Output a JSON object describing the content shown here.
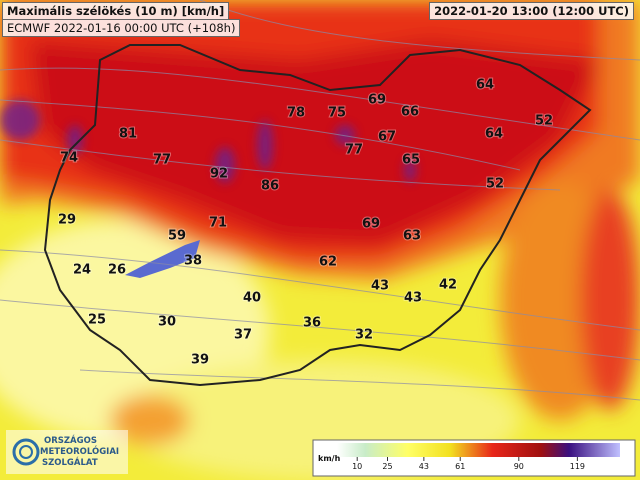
{
  "header": {
    "title": "Maximális szélökés (10 m) [km/h]",
    "subtitle": "ECMWF 2022-01-16 00:00 UTC (+108h)",
    "valid_time": "2022-01-20 13:00 (12:00 UTC)"
  },
  "map": {
    "labels": [
      74,
      81,
      77,
      92,
      86,
      78,
      75,
      69,
      66,
      64,
      67,
      77,
      65,
      64,
      52,
      52,
      29,
      71,
      59,
      69,
      63,
      38,
      24,
      26,
      62,
      43,
      42,
      43,
      40,
      25,
      30,
      37,
      36,
      32,
      39
    ]
  },
  "legend": {
    "unit": "km/h",
    "ticks": [
      10,
      25,
      43,
      61,
      90,
      119
    ]
  },
  "logo": {
    "lines": [
      "ORSZÁGOS",
      "METEOROLÓGIAI",
      "SZOLGÁLAT"
    ]
  }
}
